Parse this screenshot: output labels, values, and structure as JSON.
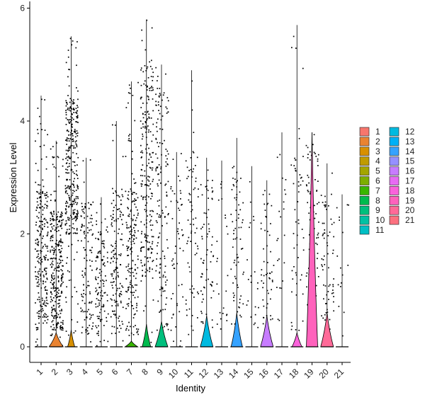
{
  "chart_data": {
    "type": "violin",
    "xlabel": "Identity",
    "ylabel": "Expression Level",
    "ylim": [
      -0.4,
      6.1
    ],
    "yticks": [
      0,
      2,
      4,
      6
    ],
    "legend_position": "right",
    "legend_columns": 2,
    "jitter_points": true,
    "categories": [
      "1",
      "2",
      "3",
      "4",
      "5",
      "6",
      "7",
      "8",
      "9",
      "10",
      "11",
      "12",
      "13",
      "14",
      "15",
      "16",
      "17",
      "18",
      "19",
      "20",
      "21"
    ],
    "colors": [
      "#F8766D",
      "#EA8331",
      "#D89000",
      "#C09B00",
      "#A3A500",
      "#7CAE00",
      "#39B600",
      "#00BB4E",
      "#00BF7D",
      "#00C1A3",
      "#00BFC4",
      "#00BAE0",
      "#00B0F6",
      "#35A2FF",
      "#9590FF",
      "#C77CFF",
      "#E76BF3",
      "#FA62DB",
      "#FF62BC",
      "#FF6A98",
      "#FC717F"
    ],
    "series": [
      {
        "name": "1",
        "max_y": 4.45,
        "dot_density": 0.75,
        "band_low": 0.3,
        "band_high": 2.8,
        "violin_top": 0.0,
        "violin_halfwidth": 0.0
      },
      {
        "name": "2",
        "max_y": 3.65,
        "dot_density": 0.95,
        "band_low": 0.3,
        "band_high": 2.4,
        "violin_top": 0.25,
        "violin_halfwidth": 0.5
      },
      {
        "name": "3",
        "max_y": 5.5,
        "dot_density": 1.0,
        "band_low": 2.0,
        "band_high": 4.4,
        "violin_top": 0.3,
        "violin_halfwidth": 0.25
      },
      {
        "name": "4",
        "max_y": 3.35,
        "dot_density": 0.35,
        "band_low": 0.2,
        "band_high": 2.6,
        "violin_top": 0.0,
        "violin_halfwidth": 0.0
      },
      {
        "name": "5",
        "max_y": 2.65,
        "dot_density": 0.35,
        "band_low": 0.2,
        "band_high": 2.2,
        "violin_top": 0.0,
        "violin_halfwidth": 0.0
      },
      {
        "name": "6",
        "max_y": 4.0,
        "dot_density": 0.45,
        "band_low": 0.2,
        "band_high": 2.8,
        "violin_top": 0.0,
        "violin_halfwidth": 0.0
      },
      {
        "name": "7",
        "max_y": 4.7,
        "dot_density": 0.55,
        "band_low": 0.2,
        "band_high": 2.8,
        "violin_top": 0.1,
        "violin_halfwidth": 0.45
      },
      {
        "name": "8",
        "max_y": 5.8,
        "dot_density": 0.7,
        "band_low": 1.3,
        "band_high": 5.0,
        "violin_top": 0.4,
        "violin_halfwidth": 0.3
      },
      {
        "name": "9",
        "max_y": 5.0,
        "dot_density": 0.45,
        "band_low": 0.3,
        "band_high": 4.6,
        "violin_top": 0.45,
        "violin_halfwidth": 0.45
      },
      {
        "name": "10",
        "max_y": 3.45,
        "dot_density": 0.15,
        "band_low": 0.3,
        "band_high": 3.2,
        "violin_top": 0.0,
        "violin_halfwidth": 0.0
      },
      {
        "name": "11",
        "max_y": 4.9,
        "dot_density": 0.2,
        "band_low": 0.3,
        "band_high": 3.4,
        "violin_top": 0.0,
        "violin_halfwidth": 0.0
      },
      {
        "name": "12",
        "max_y": 3.35,
        "dot_density": 0.2,
        "band_low": 0.3,
        "band_high": 3.0,
        "violin_top": 0.55,
        "violin_halfwidth": 0.45
      },
      {
        "name": "13",
        "max_y": 3.3,
        "dot_density": 0.06,
        "band_low": 0.3,
        "band_high": 3.0,
        "violin_top": 0.0,
        "violin_halfwidth": 0.0
      },
      {
        "name": "14",
        "max_y": 3.7,
        "dot_density": 0.2,
        "band_low": 0.3,
        "band_high": 3.0,
        "violin_top": 0.6,
        "violin_halfwidth": 0.4
      },
      {
        "name": "15",
        "max_y": 3.2,
        "dot_density": 0.05,
        "band_low": 0.3,
        "band_high": 3.0,
        "violin_top": 0.0,
        "violin_halfwidth": 0.0
      },
      {
        "name": "16",
        "max_y": 2.95,
        "dot_density": 0.15,
        "band_low": 0.3,
        "band_high": 2.8,
        "violin_top": 0.55,
        "violin_halfwidth": 0.45
      },
      {
        "name": "17",
        "max_y": 3.8,
        "dot_density": 0.05,
        "band_low": 0.3,
        "band_high": 3.5,
        "violin_top": 0.0,
        "violin_halfwidth": 0.0
      },
      {
        "name": "18",
        "max_y": 5.7,
        "dot_density": 0.15,
        "band_low": 0.3,
        "band_high": 3.5,
        "violin_top": 0.25,
        "violin_halfwidth": 0.35
      },
      {
        "name": "19",
        "max_y": 3.8,
        "dot_density": 0.3,
        "band_low": 0.3,
        "band_high": 3.6,
        "violin_top": 3.8,
        "violin_halfwidth": 0.4
      },
      {
        "name": "20",
        "max_y": 3.25,
        "dot_density": 0.2,
        "band_low": 0.3,
        "band_high": 2.6,
        "violin_top": 0.6,
        "violin_halfwidth": 0.45
      },
      {
        "name": "21",
        "max_y": 2.7,
        "dot_density": 0.03,
        "band_low": 0.3,
        "band_high": 2.6,
        "violin_top": 0.0,
        "violin_halfwidth": 0.0
      }
    ]
  }
}
